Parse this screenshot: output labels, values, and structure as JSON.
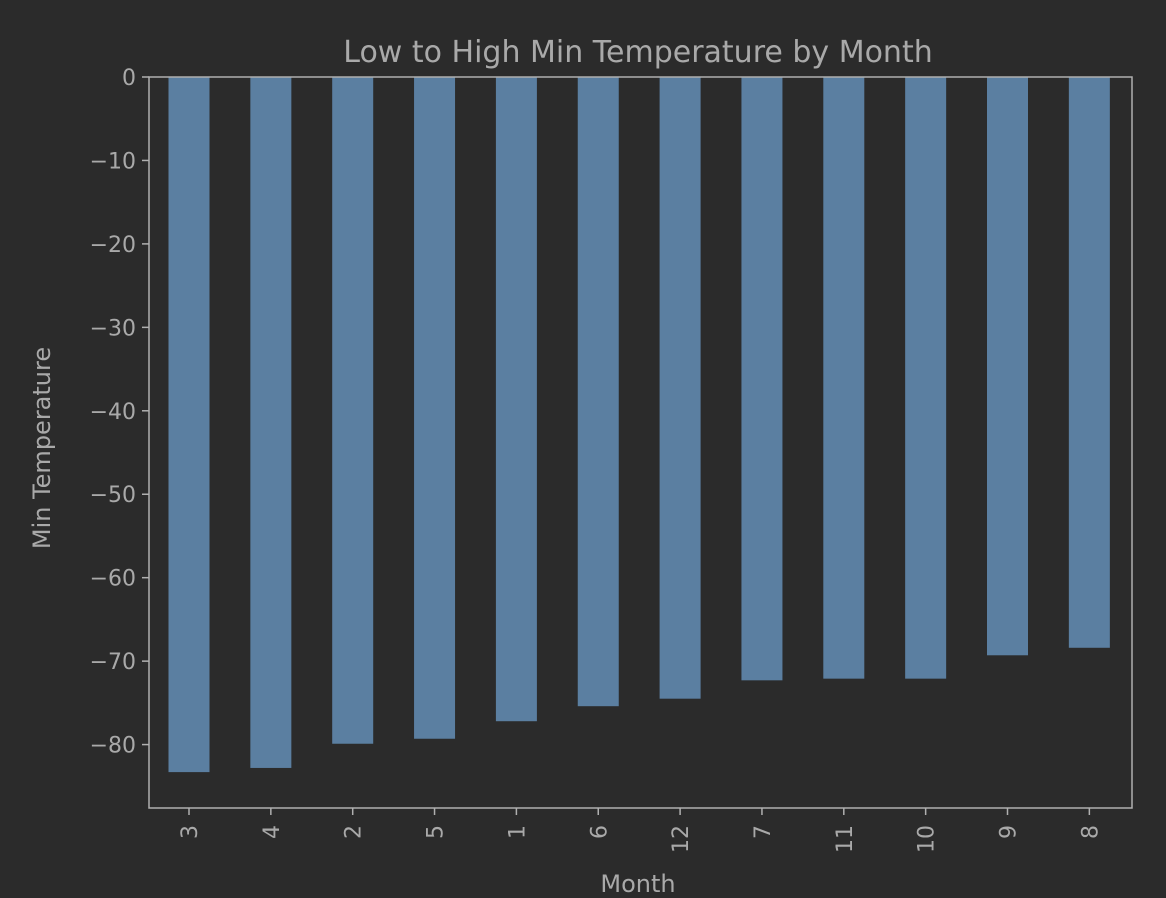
{
  "colors": {
    "background": "#2b2b2b",
    "bar": "#5b7fa1",
    "text": "#a9a9a9",
    "axis": "#b0b0b0"
  },
  "chart_data": {
    "type": "bar",
    "title": "Low to High Min Temperature by Month",
    "xlabel": "Month",
    "ylabel": "Min Temperature",
    "categories": [
      "3",
      "4",
      "2",
      "5",
      "1",
      "6",
      "12",
      "7",
      "11",
      "10",
      "9",
      "8"
    ],
    "values": [
      -83.3,
      -82.8,
      -79.9,
      -79.3,
      -77.2,
      -75.4,
      -74.5,
      -72.3,
      -72.1,
      -72.1,
      -69.3,
      -68.4
    ],
    "ylim": [
      -87.6,
      0
    ],
    "yticks": [
      0,
      -10,
      -20,
      -30,
      -40,
      -50,
      -60,
      -70,
      -80
    ],
    "grid": false,
    "legend": "none"
  }
}
